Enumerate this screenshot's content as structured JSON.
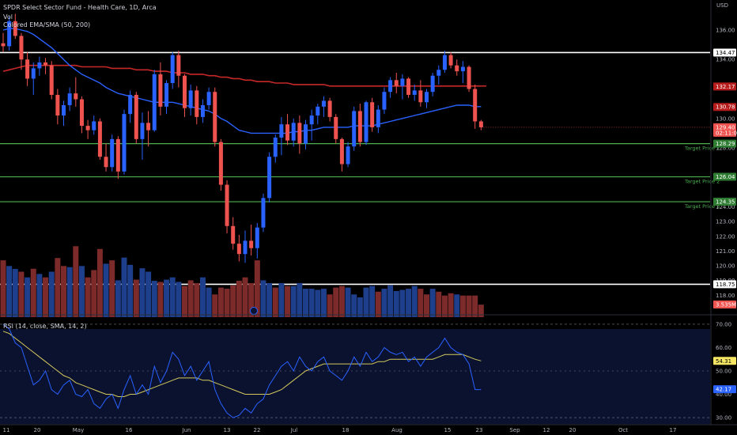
{
  "header": {
    "symbol_line": "SPDR Select Sector Fund - Health Care, 1D, Arca",
    "vol_label": "Vol",
    "ema_label": "Colored EMA/SMA (50, 200)",
    "rsi_label": "RSI (14, close, SMA, 14, 2)"
  },
  "price_axis": {
    "currency": "USD",
    "ticks": [
      "136.00",
      "134.00",
      "130.00",
      "128.00",
      "126.00",
      "124.00",
      "123.00",
      "122.00",
      "121.00",
      "120.00",
      "119.00",
      "118.00"
    ]
  },
  "rsi_axis": {
    "ticks": [
      "70.00",
      "60.00",
      "50.00",
      "40.00",
      "30.00"
    ]
  },
  "x_axis": {
    "ticks": [
      "11",
      "20",
      "May",
      "16",
      "Jun",
      "13",
      "22",
      "Jul",
      "18",
      "Aug",
      "15",
      "23",
      "Sep",
      "12",
      "20",
      "Oct",
      "17"
    ]
  },
  "levels": [
    {
      "value": 134.47,
      "label": "134.47",
      "color": "#ffffff",
      "kind": "resistance"
    },
    {
      "value": 128.29,
      "label": "128.29",
      "color": "#4caf50",
      "kind": "target",
      "tag": "Target Price 1"
    },
    {
      "value": 126.04,
      "label": "126.04",
      "color": "#4caf50",
      "kind": "target",
      "tag": "Target Price 2"
    },
    {
      "value": 124.35,
      "label": "124.35",
      "color": "#4caf50",
      "kind": "target",
      "tag": "Target Price 3"
    },
    {
      "value": 118.75,
      "label": "118.75",
      "color": "#ffffff",
      "kind": "support"
    }
  ],
  "badges": {
    "sma200": {
      "label": "132.17",
      "color": "#b71c1c"
    },
    "ema50": {
      "label": "130.78",
      "color": "#b71c1c"
    },
    "last_price": {
      "label": "129.40",
      "sub": "02:11:02",
      "color": "#ef5350"
    },
    "volume": {
      "label": "3.535M",
      "color": "#ef5350"
    },
    "rsi_ma": {
      "label": "54.31",
      "color": "#f5e663"
    },
    "rsi": {
      "label": "42.17",
      "color": "#2962ff"
    }
  },
  "colors": {
    "up": "#2962ff",
    "down": "#ef5350",
    "vol_up": "#1e3f8c",
    "vol_down": "#7d2a2a",
    "ema": "#2962ff",
    "sma": "#c62828",
    "rsi_line": "#2962ff",
    "rsi_ma": "#d4c95c"
  },
  "chart_data": {
    "type": "candlestick",
    "title": "SPDR Select Sector Fund - Health Care, 1D, Arca",
    "ylim": [
      117.0,
      137.5
    ],
    "rsi_ylim": [
      28,
      72
    ],
    "candles": [
      [
        135.1,
        135.8,
        134.5,
        134.9
      ],
      [
        134.9,
        136.9,
        134.6,
        136.6
      ],
      [
        136.6,
        137.1,
        135.4,
        135.6
      ],
      [
        135.6,
        135.8,
        133.3,
        134.0
      ],
      [
        134.0,
        134.5,
        132.2,
        132.7
      ],
      [
        132.7,
        133.8,
        131.6,
        133.4
      ],
      [
        133.4,
        134.2,
        132.9,
        133.8
      ],
      [
        133.8,
        134.1,
        133.0,
        133.6
      ],
      [
        133.6,
        133.9,
        131.3,
        131.6
      ],
      [
        131.6,
        132.0,
        129.6,
        130.2
      ],
      [
        130.2,
        131.2,
        129.5,
        130.9
      ],
      [
        130.9,
        132.1,
        130.5,
        131.7
      ],
      [
        131.7,
        132.8,
        130.8,
        131.3
      ],
      [
        131.3,
        131.5,
        129.0,
        129.5
      ],
      [
        129.5,
        129.9,
        128.6,
        129.2
      ],
      [
        129.2,
        130.2,
        128.9,
        129.8
      ],
      [
        129.8,
        130.0,
        127.2,
        127.4
      ],
      [
        127.4,
        128.3,
        126.4,
        126.7
      ],
      [
        126.7,
        128.9,
        126.4,
        128.6
      ],
      [
        128.6,
        128.8,
        125.9,
        126.4
      ],
      [
        126.4,
        130.6,
        126.2,
        130.3
      ],
      [
        130.3,
        131.9,
        129.7,
        131.6
      ],
      [
        131.6,
        131.8,
        128.3,
        128.6
      ],
      [
        128.6,
        130.4,
        127.2,
        129.7
      ],
      [
        129.7,
        130.5,
        128.1,
        129.2
      ],
      [
        129.2,
        133.3,
        129.1,
        133.0
      ],
      [
        133.0,
        133.8,
        130.2,
        130.8
      ],
      [
        130.8,
        132.6,
        130.3,
        132.4
      ],
      [
        132.4,
        134.5,
        132.0,
        134.3
      ],
      [
        134.3,
        134.6,
        132.1,
        132.9
      ],
      [
        132.9,
        133.0,
        130.1,
        130.7
      ],
      [
        130.7,
        132.3,
        130.2,
        131.9
      ],
      [
        131.9,
        132.2,
        129.6,
        130.1
      ],
      [
        130.1,
        131.3,
        129.7,
        130.9
      ],
      [
        130.9,
        132.1,
        130.6,
        131.8
      ],
      [
        131.8,
        132.1,
        128.1,
        128.4
      ],
      [
        128.4,
        128.6,
        125.1,
        125.5
      ],
      [
        125.5,
        125.8,
        122.2,
        122.7
      ],
      [
        122.7,
        123.3,
        121.1,
        121.5
      ],
      [
        121.5,
        122.1,
        120.3,
        120.8
      ],
      [
        120.8,
        122.4,
        120.2,
        121.7
      ],
      [
        121.7,
        122.8,
        120.7,
        121.2
      ],
      [
        121.2,
        122.9,
        120.5,
        122.6
      ],
      [
        122.6,
        124.9,
        122.3,
        124.6
      ],
      [
        124.6,
        127.7,
        124.3,
        127.4
      ],
      [
        127.4,
        128.9,
        127.0,
        128.7
      ],
      [
        128.7,
        130.1,
        127.5,
        129.6
      ],
      [
        129.6,
        130.3,
        128.2,
        128.5
      ],
      [
        128.5,
        130.0,
        128.1,
        129.7
      ],
      [
        129.7,
        130.2,
        127.6,
        128.3
      ],
      [
        128.3,
        129.9,
        127.9,
        129.6
      ],
      [
        129.6,
        130.6,
        128.5,
        130.2
      ],
      [
        130.2,
        131.0,
        129.6,
        130.8
      ],
      [
        130.8,
        131.5,
        130.1,
        131.2
      ],
      [
        131.2,
        131.4,
        129.8,
        130.1
      ],
      [
        130.1,
        130.3,
        128.3,
        128.6
      ],
      [
        128.6,
        128.7,
        126.4,
        126.9
      ],
      [
        126.9,
        128.4,
        126.7,
        128.1
      ],
      [
        128.1,
        130.8,
        127.8,
        130.5
      ],
      [
        130.5,
        131.0,
        128.1,
        128.4
      ],
      [
        128.4,
        131.2,
        128.2,
        131.1
      ],
      [
        131.1,
        131.4,
        129.1,
        129.4
      ],
      [
        129.4,
        130.9,
        129.0,
        130.6
      ],
      [
        130.6,
        132.1,
        130.3,
        131.8
      ],
      [
        131.8,
        132.8,
        131.4,
        132.6
      ],
      [
        132.6,
        133.1,
        131.7,
        132.2
      ],
      [
        132.2,
        133.0,
        131.3,
        132.7
      ],
      [
        132.7,
        132.8,
        131.4,
        131.6
      ],
      [
        131.6,
        132.3,
        131.2,
        131.9
      ],
      [
        131.9,
        132.6,
        130.8,
        131.1
      ],
      [
        131.1,
        132.0,
        130.7,
        131.8
      ],
      [
        131.8,
        133.1,
        131.5,
        132.9
      ],
      [
        132.9,
        133.6,
        132.3,
        133.3
      ],
      [
        133.3,
        134.6,
        133.1,
        134.3
      ],
      [
        134.3,
        134.5,
        133.4,
        133.6
      ],
      [
        133.6,
        134.0,
        132.9,
        133.2
      ],
      [
        133.2,
        133.9,
        132.4,
        133.5
      ],
      [
        133.5,
        133.6,
        131.8,
        132.0
      ],
      [
        132.0,
        132.3,
        129.3,
        129.8
      ],
      [
        129.8,
        129.9,
        129.2,
        129.4
      ]
    ],
    "volume_bars": [
      [
        2.5,
        "down"
      ],
      [
        2.25,
        "up"
      ],
      [
        2.12,
        "up"
      ],
      [
        2.0,
        "down"
      ],
      [
        1.75,
        "up"
      ],
      [
        2.13,
        "down"
      ],
      [
        1.9,
        "up"
      ],
      [
        1.75,
        "down"
      ],
      [
        2.0,
        "up"
      ],
      [
        2.6,
        "down"
      ],
      [
        2.25,
        "down"
      ],
      [
        2.2,
        "up"
      ],
      [
        3.12,
        "down"
      ],
      [
        2.25,
        "up"
      ],
      [
        1.75,
        "down"
      ],
      [
        2.07,
        "down"
      ],
      [
        3.0,
        "down"
      ],
      [
        2.35,
        "up"
      ],
      [
        2.5,
        "down"
      ],
      [
        1.62,
        "up"
      ],
      [
        2.62,
        "up"
      ],
      [
        2.3,
        "up"
      ],
      [
        1.65,
        "down"
      ],
      [
        2.15,
        "up"
      ],
      [
        2.0,
        "up"
      ],
      [
        1.6,
        "up"
      ],
      [
        1.55,
        "down"
      ],
      [
        1.65,
        "up"
      ],
      [
        1.75,
        "up"
      ],
      [
        1.55,
        "up"
      ],
      [
        1.37,
        "down"
      ],
      [
        1.62,
        "down"
      ],
      [
        1.5,
        "down"
      ],
      [
        1.75,
        "up"
      ],
      [
        1.3,
        "up"
      ],
      [
        1.0,
        "down"
      ],
      [
        1.3,
        "down"
      ],
      [
        1.25,
        "down"
      ],
      [
        1.4,
        "down"
      ],
      [
        1.6,
        "down"
      ],
      [
        1.75,
        "down"
      ],
      [
        1.5,
        "down"
      ],
      [
        2.5,
        "down"
      ],
      [
        1.62,
        "up"
      ],
      [
        1.5,
        "up"
      ],
      [
        1.3,
        "down"
      ],
      [
        1.5,
        "up"
      ],
      [
        1.37,
        "down"
      ],
      [
        1.37,
        "up"
      ],
      [
        1.5,
        "up"
      ],
      [
        1.25,
        "up"
      ],
      [
        1.25,
        "up"
      ],
      [
        1.2,
        "up"
      ],
      [
        1.25,
        "up"
      ],
      [
        1.0,
        "down"
      ],
      [
        1.3,
        "down"
      ],
      [
        1.37,
        "down"
      ],
      [
        1.3,
        "up"
      ],
      [
        1.0,
        "up"
      ],
      [
        0.87,
        "up"
      ],
      [
        1.3,
        "up"
      ],
      [
        1.37,
        "up"
      ],
      [
        1.12,
        "down"
      ],
      [
        1.25,
        "up"
      ],
      [
        1.4,
        "up"
      ],
      [
        1.15,
        "up"
      ],
      [
        1.2,
        "up"
      ],
      [
        1.25,
        "up"
      ],
      [
        1.37,
        "up"
      ],
      [
        1.25,
        "down"
      ],
      [
        1.0,
        "down"
      ],
      [
        1.25,
        "up"
      ],
      [
        1.12,
        "down"
      ],
      [
        0.95,
        "down"
      ],
      [
        1.05,
        "down"
      ],
      [
        1.0,
        "up"
      ],
      [
        0.95,
        "down"
      ],
      [
        0.95,
        "down"
      ],
      [
        0.95,
        "down"
      ],
      [
        0.55,
        "down"
      ]
    ],
    "ema50": [
      136.0,
      136.1,
      136.1,
      136.0,
      135.9,
      135.7,
      135.4,
      135.1,
      134.8,
      134.4,
      134.0,
      133.6,
      133.3,
      133.0,
      132.8,
      132.6,
      132.4,
      132.1,
      131.9,
      131.7,
      131.6,
      131.5,
      131.4,
      131.3,
      131.2,
      131.1,
      131.1,
      131.1,
      131.1,
      131.0,
      130.9,
      130.8,
      130.7,
      130.6,
      130.5,
      130.3,
      130.0,
      129.8,
      129.5,
      129.2,
      129.1,
      129.0,
      129.0,
      129.0,
      129.0,
      129.0,
      129.0,
      129.0,
      129.1,
      129.1,
      129.2,
      129.2,
      129.3,
      129.4,
      129.4,
      129.4,
      129.4,
      129.4,
      129.5,
      129.5,
      129.5,
      129.5,
      129.6,
      129.7,
      129.8,
      129.9,
      130.0,
      130.1,
      130.2,
      130.3,
      130.4,
      130.5,
      130.6,
      130.7,
      130.8,
      130.9,
      130.9,
      130.9,
      130.8,
      130.8
    ],
    "sma200": [
      133.2,
      133.3,
      133.4,
      133.5,
      133.6,
      133.6,
      133.6,
      133.6,
      133.6,
      133.6,
      133.6,
      133.6,
      133.6,
      133.5,
      133.5,
      133.5,
      133.5,
      133.5,
      133.4,
      133.4,
      133.4,
      133.4,
      133.3,
      133.3,
      133.3,
      133.2,
      133.2,
      133.2,
      133.1,
      133.1,
      133.1,
      133.0,
      133.0,
      133.0,
      132.9,
      132.9,
      132.8,
      132.8,
      132.7,
      132.7,
      132.6,
      132.6,
      132.5,
      132.5,
      132.5,
      132.4,
      132.4,
      132.4,
      132.3,
      132.3,
      132.3,
      132.3,
      132.3,
      132.3,
      132.2,
      132.2,
      132.2,
      132.2,
      132.2,
      132.2,
      132.2,
      132.2,
      132.2,
      132.2,
      132.2,
      132.2,
      132.2,
      132.2,
      132.2,
      132.2,
      132.2,
      132.2,
      132.2,
      132.2,
      132.2,
      132.2,
      132.2,
      132.2,
      132.2,
      132.2
    ],
    "rsi": [
      70,
      68,
      62,
      60,
      52,
      44,
      46,
      50,
      42,
      40,
      44,
      46,
      40,
      39,
      42,
      36,
      34,
      38,
      40,
      34,
      42,
      48,
      40,
      44,
      40,
      52,
      45,
      50,
      58,
      55,
      48,
      52,
      46,
      50,
      54,
      42,
      36,
      32,
      30,
      31,
      34,
      32,
      36,
      38,
      44,
      48,
      52,
      54,
      50,
      56,
      52,
      50,
      54,
      56,
      50,
      48,
      46,
      50,
      56,
      52,
      58,
      54,
      56,
      60,
      58,
      57,
      58,
      54,
      56,
      52,
      56,
      58,
      60,
      64,
      60,
      58,
      57,
      53,
      42,
      42
    ],
    "rsi_ma": [
      67,
      66,
      64,
      62,
      60,
      58,
      56,
      54,
      52,
      50,
      48,
      47,
      45,
      44,
      43,
      42,
      41,
      40,
      40,
      39,
      39,
      40,
      40,
      41,
      42,
      43,
      44,
      45,
      46,
      47,
      47,
      47,
      47,
      46,
      46,
      45,
      44,
      43,
      42,
      41,
      40,
      40,
      40,
      40,
      40,
      41,
      42,
      44,
      46,
      48,
      50,
      51,
      52,
      53,
      53,
      53,
      53,
      53,
      53,
      53,
      53,
      53,
      54,
      54,
      55,
      55,
      55,
      55,
      55,
      55,
      55,
      55,
      56,
      57,
      57,
      57,
      57,
      56,
      55,
      54.3
    ]
  }
}
